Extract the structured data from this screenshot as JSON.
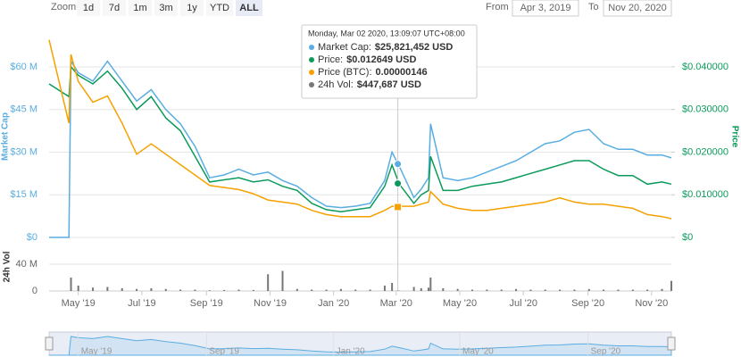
{
  "toolbar": {
    "zoom_label": "Zoom",
    "buttons": [
      "1d",
      "7d",
      "1m",
      "3m",
      "1y",
      "YTD",
      "ALL"
    ],
    "selected_index": 6,
    "from_label": "From",
    "from": "Apr 3, 2019",
    "to_label": "To",
    "to": "Nov 20, 2020"
  },
  "chart_data": {
    "type": "line",
    "x": [
      "2019-04-03",
      "2019-04-22",
      "2019-04-24",
      "2019-05-01",
      "2019-05-15",
      "2019-05-29",
      "2019-06-12",
      "2019-06-26",
      "2019-07-10",
      "2019-07-24",
      "2019-08-07",
      "2019-08-21",
      "2019-09-04",
      "2019-09-18",
      "2019-10-02",
      "2019-10-16",
      "2019-10-30",
      "2019-11-13",
      "2019-11-27",
      "2019-12-11",
      "2019-12-25",
      "2020-01-08",
      "2020-01-22",
      "2020-02-05",
      "2020-02-19",
      "2020-02-26",
      "2020-03-04",
      "2020-03-18",
      "2020-03-25",
      "2020-04-01",
      "2020-04-03",
      "2020-04-15",
      "2020-04-29",
      "2020-05-13",
      "2020-05-27",
      "2020-06-10",
      "2020-06-24",
      "2020-07-08",
      "2020-07-22",
      "2020-08-05",
      "2020-08-19",
      "2020-09-02",
      "2020-09-16",
      "2020-09-30",
      "2020-10-14",
      "2020-10-28",
      "2020-11-11",
      "2020-11-20"
    ],
    "xlim": [
      "2019-04-03",
      "2020-11-20"
    ],
    "xticks": [
      {
        "value": "2019-05-01",
        "label": "May '19"
      },
      {
        "value": "2019-07-01",
        "label": "Jul '19"
      },
      {
        "value": "2019-09-01",
        "label": "Sep '19"
      },
      {
        "value": "2019-11-01",
        "label": "Nov '19"
      },
      {
        "value": "2020-01-01",
        "label": "Jan '20"
      },
      {
        "value": "2020-03-01",
        "label": "Mar '20"
      },
      {
        "value": "2020-05-01",
        "label": "May '20"
      },
      {
        "value": "2020-07-01",
        "label": "Jul '20"
      },
      {
        "value": "2020-09-01",
        "label": "Sep '20"
      },
      {
        "value": "2020-11-01",
        "label": "Nov '20"
      }
    ],
    "y_label": "Market Cap",
    "ylim": [
      0,
      71000000
    ],
    "yticks": [
      {
        "value": 0,
        "label": "$0"
      },
      {
        "value": 15000000,
        "label": "$15 M"
      },
      {
        "value": 30000000,
        "label": "$30 M"
      },
      {
        "value": 45000000,
        "label": "$45 M"
      },
      {
        "value": 60000000,
        "label": "$60 M"
      }
    ],
    "y2_label": "Price",
    "y2lim": [
      0,
      0.0473
    ],
    "y2ticks": [
      {
        "value": 0,
        "label": "$0"
      },
      {
        "value": 0.01,
        "label": "$0.010000"
      },
      {
        "value": 0.02,
        "label": "$0.020000"
      },
      {
        "value": 0.03,
        "label": "$0.030000"
      },
      {
        "value": 0.04,
        "label": "$0.040000"
      }
    ],
    "y3lim": [
      0,
      9.7e-06
    ],
    "vol_label": "24h Vol",
    "vol_lim": [
      0,
      72000000
    ],
    "vol_ticks": [
      0,
      {
        "value": 40000000,
        "label": "40 M"
      }
    ],
    "grid": true,
    "series": [
      {
        "color": "#5aade2",
        "values": [
          0,
          0,
          62000000,
          58000000,
          55000000,
          62000000,
          55000000,
          48000000,
          52000000,
          45000000,
          40000000,
          32000000,
          21000000,
          22000000,
          24000000,
          22000000,
          23000000,
          20000000,
          18000000,
          14000000,
          11000000,
          10500000,
          11000000,
          12000000,
          20000000,
          30000000,
          25000000,
          14000000,
          17000000,
          21000000,
          40000000,
          21000000,
          20000000,
          21000000,
          23000000,
          25000000,
          27000000,
          30000000,
          33000000,
          34000000,
          37000000,
          38000000,
          33000000,
          31000000,
          31000000,
          29000000,
          29000000,
          28000000
        ]
      },
      {
        "color": "#0b9a5b",
        "axis": "y2",
        "values": [
          0.036,
          0.033,
          0.04,
          0.038,
          0.036,
          0.039,
          0.035,
          0.03,
          0.033,
          0.028,
          0.025,
          0.019,
          0.013,
          0.0135,
          0.014,
          0.013,
          0.0135,
          0.012,
          0.011,
          0.008,
          0.0065,
          0.006,
          0.0065,
          0.007,
          0.012,
          0.017,
          0.0125,
          0.008,
          0.01,
          0.011,
          0.019,
          0.011,
          0.011,
          0.012,
          0.0125,
          0.013,
          0.014,
          0.015,
          0.016,
          0.017,
          0.018,
          0.018,
          0.016,
          0.0145,
          0.0145,
          0.0125,
          0.013,
          0.0125
        ]
      },
      {
        "color": "#f5a100",
        "axis": "y3",
        "values": [
          9.5e-06,
          5.5e-06,
          8.8e-06,
          7.5e-06,
          6.5e-06,
          6.8e-06,
          5.5e-06,
          4e-06,
          4.5e-06,
          4e-06,
          3.5e-06,
          3e-06,
          2.5e-06,
          2.4e-06,
          2.3e-06,
          2.1e-06,
          1.8e-06,
          1.7e-06,
          1.6e-06,
          1.3e-06,
          1.1e-06,
          1e-06,
          1e-06,
          1e-06,
          1.3e-06,
          1.5e-06,
          1.5e-06,
          1.5e-06,
          1.6e-06,
          1.7e-06,
          2.2e-06,
          1.6e-06,
          1.4e-06,
          1.3e-06,
          1.3e-06,
          1.4e-06,
          1.5e-06,
          1.6e-06,
          1.7e-06,
          1.9e-06,
          1.7e-06,
          1.6e-06,
          1.6e-06,
          1.5e-06,
          1.4e-06,
          1.1e-06,
          1e-06,
          9e-07
        ]
      },
      {
        "color": "#777777",
        "axis": "vol",
        "type": "bar",
        "values": [
          0,
          0,
          20000000,
          8000000,
          5000000,
          6000000,
          4000000,
          3000000,
          4000000,
          3000000,
          2000000,
          2000000,
          1000000,
          1500000,
          2000000,
          1500000,
          25000000,
          30000000,
          3000000,
          2000000,
          2000000,
          3000000,
          2000000,
          2000000,
          8000000,
          12000000,
          450000,
          6000000,
          4000000,
          5000000,
          20000000,
          4000000,
          3000000,
          2000000,
          2000000,
          2000000,
          3000000,
          2000000,
          2000000,
          2000000,
          2000000,
          3000000,
          2000000,
          2000000,
          2000000,
          2000000,
          3000000,
          15000000
        ]
      }
    ],
    "tooltip": {
      "x": "2020-03-02T13:09:07",
      "date": "Monday, Mar 02 2020, 13:09:07 UTC+08:00",
      "items": [
        {
          "name": "Market Cap:",
          "value": 25821452,
          "value_label": "$25,821,452 USD"
        },
        {
          "name": "Price:",
          "value": 0.012649,
          "value_label": "$0.012649 USD"
        },
        {
          "name": "Price (BTC):",
          "value": 1.46e-06,
          "value_label": "0.00000146"
        },
        {
          "name": "24h Vol:",
          "value": 447687,
          "value_label": "$447,687 USD"
        }
      ]
    },
    "navigator": {
      "xticks": [
        {
          "value": "2019-05-01",
          "label": "May '19"
        },
        {
          "value": "2019-09-01",
          "label": "Sep '19"
        },
        {
          "value": "2020-01-01",
          "label": "Jan '20"
        },
        {
          "value": "2020-05-01",
          "label": "May '20"
        },
        {
          "value": "2020-09-01",
          "label": "Sep '20"
        }
      ]
    }
  }
}
